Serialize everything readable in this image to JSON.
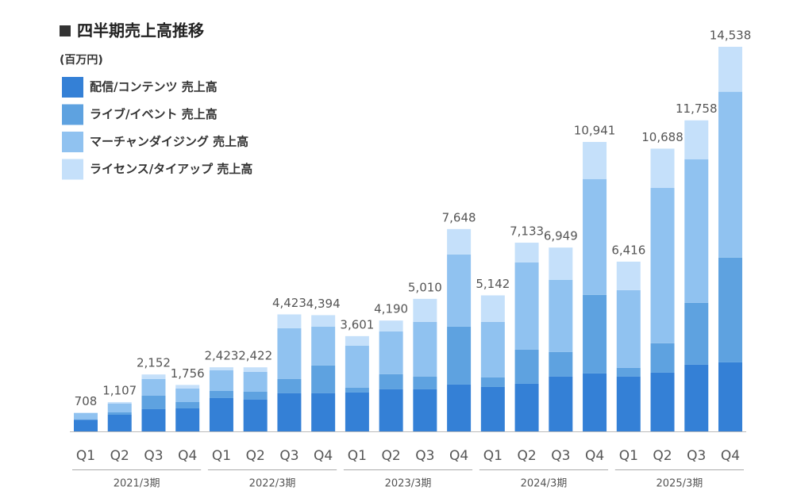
{
  "chart_data": {
    "type": "stacked-bar",
    "title": "四半期売上高推移",
    "unit": "(百万円)",
    "categories": [
      "Q1",
      "Q2",
      "Q3",
      "Q4",
      "Q1",
      "Q2",
      "Q3",
      "Q4",
      "Q1",
      "Q2",
      "Q3",
      "Q4",
      "Q1",
      "Q2",
      "Q3",
      "Q4",
      "Q1",
      "Q2",
      "Q3",
      "Q4"
    ],
    "groups": [
      "2021/3期",
      "2022/3期",
      "2023/3期",
      "2024/3期",
      "2025/3期"
    ],
    "series": [
      {
        "name": "配信/コンテンツ 売上高",
        "color": "#3480d6",
        "values": [
          440,
          630,
          840,
          870,
          1260,
          1200,
          1440,
          1440,
          1470,
          1590,
          1590,
          1770,
          1680,
          1800,
          2070,
          2190,
          2070,
          2220,
          2520,
          2610
        ]
      },
      {
        "name": "ライブ/イベント 売上高",
        "color": "#5ea2e0",
        "values": [
          20,
          90,
          510,
          240,
          270,
          300,
          540,
          1050,
          180,
          570,
          480,
          2190,
          360,
          1290,
          930,
          2970,
          330,
          1110,
          2340,
          3960
        ]
      },
      {
        "name": "マーチャンダイジング 売上高",
        "color": "#90c2f0",
        "values": [
          230,
          330,
          630,
          510,
          780,
          750,
          1920,
          1470,
          1590,
          1620,
          2070,
          2730,
          2100,
          3300,
          2730,
          4380,
          2940,
          5880,
          5430,
          6270
        ]
      },
      {
        "name": "ライセンス/タイアップ 売上高",
        "color": "#c5e0fa",
        "values": [
          18,
          57,
          172,
          136,
          113,
          172,
          523,
          434,
          361,
          410,
          870,
          958,
          1002,
          743,
          1219,
          1401,
          1076,
          1478,
          1468,
          1698
        ]
      }
    ],
    "totals": [
      708,
      1107,
      2152,
      1756,
      2423,
      2422,
      4423,
      4394,
      3601,
      4190,
      5010,
      7648,
      5142,
      7133,
      6949,
      10941,
      6416,
      10688,
      11758,
      14538
    ],
    "total_labels": [
      "708",
      "1,107",
      "2,152",
      "1,756",
      "2,423",
      "2,422",
      "4,423",
      "4,394",
      "3,601",
      "4,190",
      "5,010",
      "7,648",
      "5,142",
      "7,133",
      "6,949",
      "10,941",
      "6,416",
      "10,688",
      "11,758",
      "14,538"
    ]
  }
}
